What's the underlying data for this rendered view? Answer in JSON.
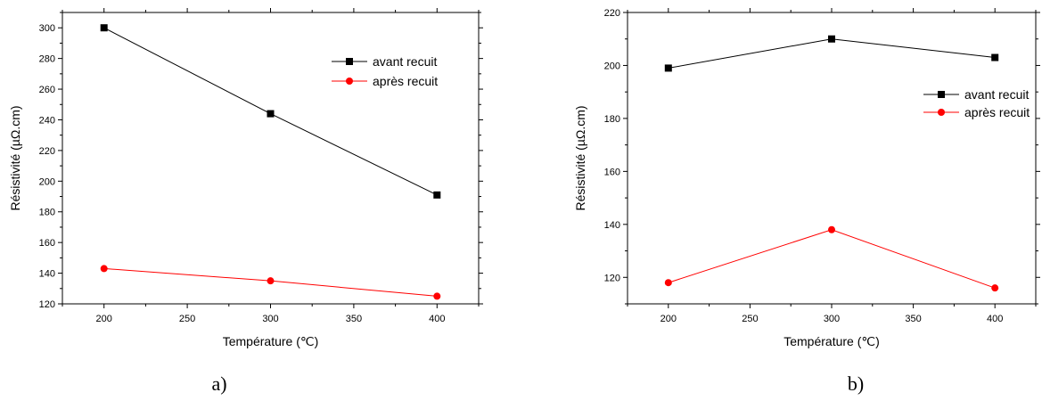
{
  "chart_data": [
    {
      "type": "line",
      "x": [
        200,
        300,
        400
      ],
      "xlabel": "Température (℃)",
      "ylabel": "Résistivité (µΩ.cm)",
      "xlim": [
        175,
        425
      ],
      "ylim": [
        120,
        310
      ],
      "xticks": [
        "200",
        "250",
        "300",
        "350",
        "400"
      ],
      "yticks": [
        "120",
        "140",
        "160",
        "180",
        "200",
        "220",
        "240",
        "260",
        "280",
        "300"
      ],
      "legend_position": "top-right",
      "series": [
        {
          "name": "avant recuit",
          "values": [
            300,
            244,
            191
          ],
          "color": "#000000",
          "marker": "square"
        },
        {
          "name": "après recuit",
          "values": [
            143,
            135,
            125
          ],
          "color": "#ff0000",
          "marker": "circle"
        }
      ],
      "caption": "a)"
    },
    {
      "type": "line",
      "x": [
        200,
        300,
        400
      ],
      "xlabel": "Température (℃)",
      "ylabel": "Résistivité (µΩ.cm)",
      "xlim": [
        175,
        425
      ],
      "ylim": [
        110,
        220
      ],
      "xticks": [
        "200",
        "250",
        "300",
        "350",
        "400"
      ],
      "yticks": [
        "120",
        "140",
        "160",
        "180",
        "200",
        "220"
      ],
      "legend_position": "right",
      "series": [
        {
          "name": "avant recuit",
          "values": [
            199,
            210,
            203
          ],
          "color": "#000000",
          "marker": "square"
        },
        {
          "name": "après recuit",
          "values": [
            118,
            138,
            116
          ],
          "color": "#ff0000",
          "marker": "circle"
        }
      ],
      "caption": "b)"
    }
  ]
}
